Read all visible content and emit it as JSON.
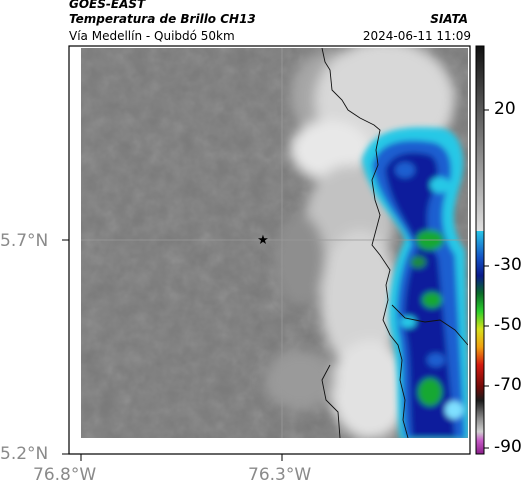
{
  "header": {
    "satellite": "GOES-EAST",
    "product": "Temperatura de Brillo CH13",
    "brand": "SIATA",
    "route": "Vía Medellín - Quibdó 50km",
    "timestamp": "2024-06-11 11:09"
  },
  "map": {
    "latitude_labels": [
      "5.7°N",
      "5.2°N"
    ],
    "longitude_labels": [
      "76.8°W",
      "76.3°W"
    ],
    "marker": "star-icon",
    "colors": {
      "cold_core": "#0a1f9c",
      "cold_mid": "#1a5fd0",
      "cold_edge": "#28c8e6",
      "convective": "#18a830",
      "warm_cloud": "#e8e8e8",
      "clear": "#7a7a7a"
    }
  },
  "colorbar": {
    "tick_labels": [
      "20",
      "-30",
      "-50",
      "-70",
      "-90"
    ]
  }
}
